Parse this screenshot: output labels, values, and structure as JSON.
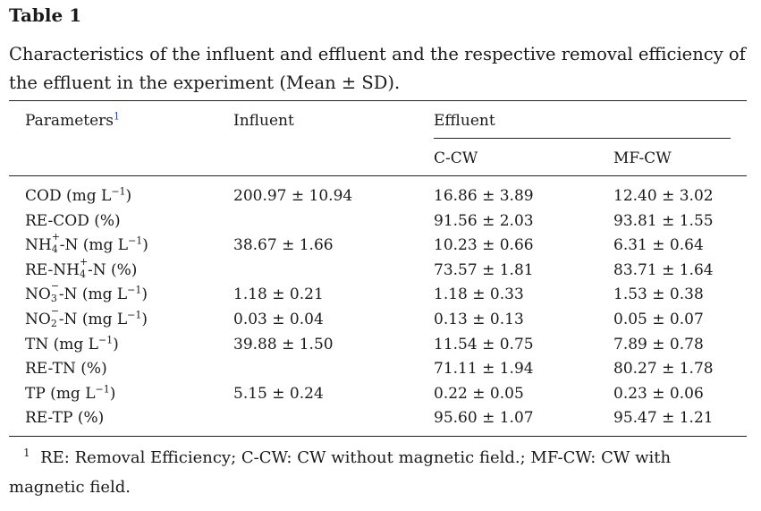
{
  "table": {
    "label": "Table 1",
    "caption": "Characteristics of the influent and effluent and the respective removal efficiency of the effluent in the experiment (Mean ± SD).",
    "headers": {
      "parameters": "Parameters",
      "parameters_note": "1",
      "influent": "Influent",
      "effluent": "Effluent",
      "ccw": "C-CW",
      "mfcw": "MF-CW"
    },
    "rows": [
      {
        "param": "COD (mg L⁻¹)",
        "influent": "200.97 ± 10.94",
        "ccw": "16.86 ± 3.89",
        "mfcw": "12.40 ± 3.02"
      },
      {
        "param": "RE-COD (%)",
        "influent": "",
        "ccw": "91.56 ± 2.03",
        "mfcw": "93.81 ± 1.55"
      },
      {
        "param": "NH₄⁺-N (mg L⁻¹)",
        "influent": "38.67 ± 1.66",
        "ccw": "10.23 ± 0.66",
        "mfcw": "6.31 ± 0.64"
      },
      {
        "param": "RE-NH₄⁺-N (%)",
        "influent": "",
        "ccw": "73.57 ± 1.81",
        "mfcw": "83.71 ± 1.64"
      },
      {
        "param": "NO₃⁻-N (mg L⁻¹)",
        "influent": "1.18 ± 0.21",
        "ccw": "1.18 ± 0.33",
        "mfcw": "1.53 ± 0.38"
      },
      {
        "param": "NO₂⁻-N (mg L⁻¹)",
        "influent": "0.03 ± 0.04",
        "ccw": "0.13 ± 0.13",
        "mfcw": "0.05 ± 0.07"
      },
      {
        "param": "TN (mg L⁻¹)",
        "influent": "39.88 ± 1.50",
        "ccw": "11.54 ± 0.75",
        "mfcw": "7.89 ± 0.78"
      },
      {
        "param": "RE-TN (%)",
        "influent": "",
        "ccw": "71.11 ± 1.94",
        "mfcw": "80.27 ± 1.78"
      },
      {
        "param": "TP (mg L⁻¹)",
        "influent": "5.15 ± 0.24",
        "ccw": "0.22 ± 0.05",
        "mfcw": "0.23 ± 0.06"
      },
      {
        "param": "RE-TP (%)",
        "influent": "",
        "ccw": "95.60 ± 1.07",
        "mfcw": "95.47 ± 1.21"
      }
    ],
    "footnote": {
      "marker": "1",
      "text": "RE: Removal Efficiency; C-CW: CW without magnetic field.; MF-CW: CW with magnetic field."
    }
  }
}
